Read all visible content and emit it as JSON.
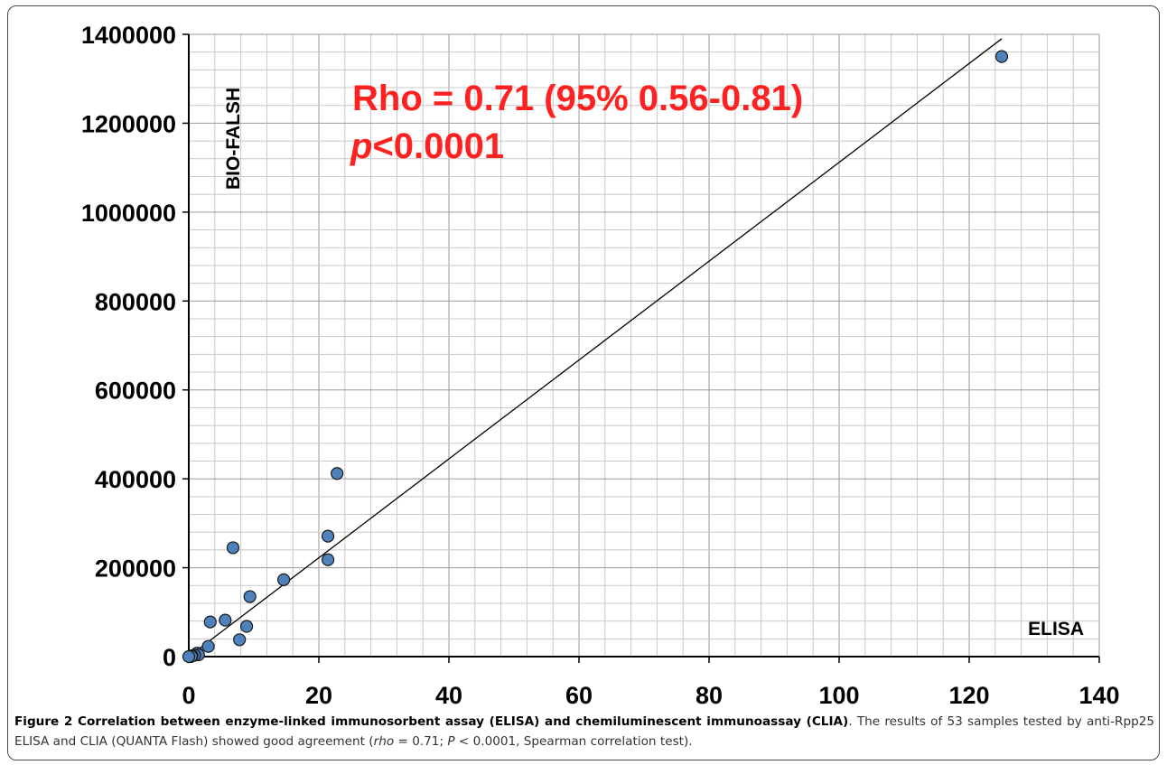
{
  "chart_data": {
    "type": "scatter",
    "xlabel": "ELISA",
    "ylabel": "BIO-FALSH",
    "xlim": [
      0,
      140
    ],
    "ylim": [
      0,
      1400000
    ],
    "x_ticks": [
      "0",
      "20",
      "40",
      "60",
      "80",
      "100",
      "120",
      "140"
    ],
    "y_ticks": [
      "0",
      "200000",
      "400000",
      "600000",
      "800000",
      "1000000",
      "1200000",
      "1400000"
    ],
    "grid": true,
    "point_color": "#4f81bd",
    "annotation_color": "#ff2020",
    "annotation_line1": "Rho = 0.71 (95% 0.56-0.81)",
    "annotation_line2_italic": "p",
    "annotation_line2_rest": "<0.0001",
    "trendline": {
      "x": [
        0,
        125
      ],
      "y": [
        0,
        1390000
      ]
    },
    "points": [
      {
        "x": 125.0,
        "y": 1350000
      },
      {
        "x": 22.8,
        "y": 412000
      },
      {
        "x": 21.4,
        "y": 271000
      },
      {
        "x": 21.4,
        "y": 218000
      },
      {
        "x": 6.8,
        "y": 245000
      },
      {
        "x": 14.6,
        "y": 173000
      },
      {
        "x": 9.4,
        "y": 135000
      },
      {
        "x": 5.6,
        "y": 82000
      },
      {
        "x": 3.3,
        "y": 78000
      },
      {
        "x": 8.9,
        "y": 68000
      },
      {
        "x": 7.8,
        "y": 38000
      },
      {
        "x": 3.0,
        "y": 23000
      },
      {
        "x": 1.3,
        "y": 8000
      },
      {
        "x": 1.5,
        "y": 4000
      },
      {
        "x": 0.9,
        "y": 3000
      },
      {
        "x": 0.5,
        "y": 2000
      },
      {
        "x": 0.3,
        "y": 1000
      },
      {
        "x": 0.2,
        "y": 0
      },
      {
        "x": 0.1,
        "y": 0
      },
      {
        "x": 0.4,
        "y": 500
      },
      {
        "x": 0.0,
        "y": 0
      }
    ]
  },
  "caption": {
    "label": "Figure 2 Correlation between enzyme-linked immunosorbent assay (ELISA) and chemiluminescent immunoassay (CLIA)",
    "text_a": ". The results of 53 samples tested by anti-Rpp25 ELISA and CLIA (QUANTA Flash) showed good agreement (",
    "rho_symbol": "rho",
    "text_b": " = 0.71; ",
    "p_symbol": "P",
    "text_c": " < 0.0001, Spearman correlation test)."
  }
}
